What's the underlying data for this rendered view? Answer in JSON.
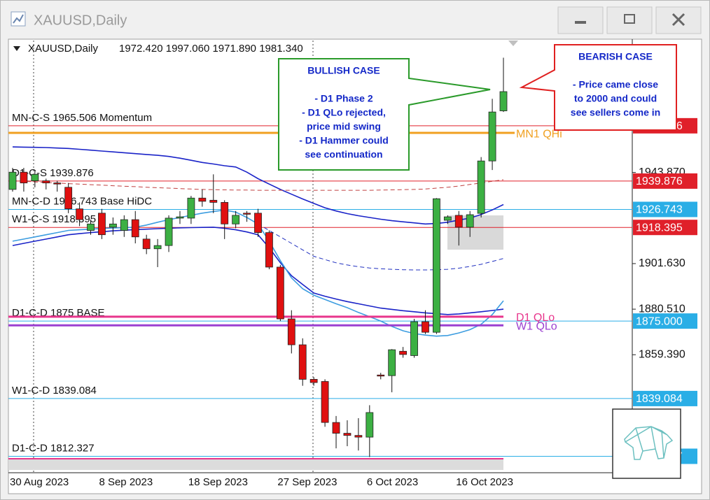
{
  "window": {
    "title": "XAUUSD,Daily"
  },
  "chart_data": {
    "type": "candlestick",
    "title": "XAUUSD,Daily",
    "subtitle": "1972.420 1997.060 1971.890 1981.340",
    "categories": [
      "30 Aug 2023",
      null,
      null,
      null,
      null,
      null,
      null,
      null,
      "8 Sep 2023",
      null,
      null,
      null,
      null,
      null,
      null,
      null,
      "18 Sep 2023",
      null,
      null,
      null,
      null,
      null,
      null,
      null,
      "27 Sep 2023",
      null,
      null,
      null,
      null,
      null,
      null,
      null,
      "6 Oct 2023",
      null,
      null,
      null,
      null,
      null,
      null,
      null,
      "16 Oct 2023",
      null,
      null,
      null,
      null
    ],
    "open": [
      1936,
      1944,
      1940,
      1940,
      1939,
      1937,
      1927,
      1917,
      1925,
      1918.5,
      1917,
      1922,
      1913,
      1908.5,
      1910,
      1922.7,
      1922.7,
      1932,
      1931,
      1930,
      1920,
      1925,
      1925,
      1916,
      1900,
      1876,
      1864,
      1848,
      1847,
      1828,
      1823,
      1822,
      1821.2,
      1850,
      1849.7,
      1861,
      1859,
      1874.7,
      1869.8,
      1921.7,
      1924,
      1918.5,
      1924.9,
      1949.2,
      1972.42
    ],
    "high": [
      1946,
      1946,
      1945,
      1941,
      1940,
      1939,
      1930,
      1922,
      1927,
      1923,
      1924,
      1926,
      1915,
      1913,
      1924,
      1926,
      1933,
      1936,
      1943,
      1931,
      1926,
      1926,
      1927,
      1917,
      1901,
      1880,
      1867,
      1849,
      1848,
      1831,
      1829,
      1830,
      1836,
      1851,
      1862,
      1863,
      1876,
      1880,
      1932,
      1924,
      1926,
      1926,
      1951,
      1978,
      1997.06
    ],
    "low": [
      1935,
      1935,
      1937,
      1936,
      1935,
      1925,
      1919,
      1915,
      1913,
      1915,
      1914,
      1911,
      1906,
      1900,
      1907,
      1920,
      1920,
      1928,
      1925,
      1913,
      1918,
      1921,
      1914,
      1899,
      1875,
      1860,
      1845,
      1845,
      1826,
      1816,
      1817,
      1815,
      1812,
      1848,
      1842,
      1858,
      1858,
      1869,
      1869,
      1920,
      1910,
      1914,
      1923,
      1945,
      1971.89
    ],
    "close": [
      1944,
      1939,
      1943,
      1939,
      1938.5,
      1927,
      1922,
      1920,
      1915,
      1920,
      1922,
      1914,
      1908.5,
      1910,
      1922.7,
      1923.3,
      1932,
      1930.5,
      1930,
      1920,
      1924,
      1924.5,
      1916,
      1900,
      1876,
      1864,
      1848,
      1846.5,
      1828,
      1823,
      1822,
      1821.2,
      1832.6,
      1849.5,
      1861.7,
      1859.5,
      1874.7,
      1869.8,
      1931.7,
      1923.3,
      1918.5,
      1924.3,
      1949.2,
      1971.9,
      1981.34
    ],
    "up_color": "#3cb043",
    "down_color": "#e01010",
    "indicators": [
      {
        "color": "#1a23c8",
        "values": [
          1955.7,
          1955.6,
          1955.5,
          1955.4,
          1955.2,
          1955,
          1954.6,
          1954.2,
          1953.8,
          1953.4,
          1953,
          1952.6,
          1952.2,
          1951.8,
          1951.3,
          1950.5,
          1949.5,
          1948.5,
          1947.8,
          1947,
          1946.4,
          1944,
          1941,
          1938.5,
          1936,
          1933.8,
          1931.6,
          1929.5,
          1927.5,
          1926,
          1924.8,
          1923.8,
          1923,
          1922.2,
          1921.5,
          1921,
          1920.5,
          1920,
          1920.2,
          1920.8,
          1921.8,
          1922.7,
          1924.4,
          1926.5,
          1929
        ]
      },
      {
        "color": "#1a23c8",
        "values": [
          1910,
          1911,
          1912,
          1913,
          1914,
          1915,
          1915.5,
          1916,
          1916.4,
          1916.8,
          1917.1,
          1917.4,
          1917.6,
          1917.8,
          1918,
          1918.2,
          1918.3,
          1918.4,
          1918.5,
          1918,
          1917.3,
          1916.3,
          1915,
          1909,
          1902,
          1896,
          1892,
          1888,
          1886.5,
          1885.2,
          1884,
          1883,
          1882,
          1881,
          1880.4,
          1879.8,
          1879.3,
          1878.8,
          1878.4,
          1878,
          1878.3,
          1878.8,
          1879.3,
          1879.9,
          1880.5
        ]
      },
      {
        "color": "#3d9de0",
        "values": [
          1912,
          1913,
          1914,
          1915,
          1916,
          1917,
          1917.3,
          1917.6,
          1917.9,
          1918.1,
          1918.3,
          1918.5,
          1919.5,
          1920.8,
          1922,
          1923,
          1924,
          1925,
          1925.8,
          1926.4,
          1925.5,
          1923,
          1920,
          1912,
          1903,
          1895,
          1890,
          1887,
          1885,
          1883,
          1881.2,
          1879,
          1877,
          1875,
          1872.5,
          1870.5,
          1869.2,
          1868.5,
          1868,
          1868.3,
          1869.5,
          1871,
          1873.5,
          1878,
          1884.4
        ]
      },
      {
        "color": "#2030c0",
        "dash": true,
        "values": [
          null,
          null,
          null,
          null,
          null,
          null,
          null,
          null,
          null,
          null,
          null,
          null,
          null,
          null,
          null,
          null,
          null,
          null,
          null,
          null,
          null,
          null,
          1920,
          1917,
          1914,
          1911,
          1908,
          1905,
          1903.5,
          1902,
          1901,
          1900.2,
          1899.6,
          1899.2,
          1899,
          1898.8,
          1898.7,
          1898.7,
          1898.8,
          1899,
          1899.5,
          1900.3,
          1901.3,
          1902.6,
          1904
        ]
      },
      {
        "color": "#c04040",
        "dash": true,
        "values": [
          1940,
          1939.8,
          1939.5,
          1939.2,
          1939,
          1938.7,
          1938.5,
          1938.2,
          1938,
          1937.7,
          1937.5,
          1937.3,
          1937,
          1936.8,
          1936.6,
          1936.4,
          1936.2,
          1936,
          1935.9,
          1935.8,
          1935.7,
          1935.7,
          1935.6,
          1935.6,
          1935.6,
          1935.6,
          1935.6,
          1935.6,
          1935.6,
          1935.6,
          1935.6,
          1935.6,
          1935.6,
          1935.7,
          1935.8,
          1935.9,
          1936,
          1936.2,
          1936.6,
          1937,
          1937.6,
          1938.3,
          1939,
          1939.8,
          1940.5
        ]
      }
    ],
    "levels": [
      {
        "text": "MN-C-S 1965.506 Momentum",
        "value": 1965.506,
        "color": "#e0202a"
      },
      {
        "text": "D1-C-S 1939.876",
        "value": 1939.876,
        "color": "#e0202a"
      },
      {
        "text": "MN-C-D 1926.743 Base HiDC",
        "value": 1926.743,
        "color": "#2aaee6"
      },
      {
        "text": "W1-C-S 1918.395",
        "value": 1918.395,
        "color": "#e0202a"
      },
      {
        "text": "D1-C-D 1875 BASE",
        "value": 1875,
        "tag": "1875.000",
        "color": "#2aaee6"
      },
      {
        "text": "W1-C-D 1839.084",
        "value": 1839.084,
        "color": "#2aaee6"
      },
      {
        "text": "D1-C-D 1812.327",
        "value": 1812.327,
        "color": "#2aaee6"
      }
    ],
    "bands": [
      {
        "text": "MN1 QHi",
        "value": 1962.2,
        "color": "#f0a020"
      },
      {
        "text": "D1 QLo",
        "value": 1877,
        "color": "#e8358c"
      },
      {
        "text": "W1 QLo",
        "value": 1873,
        "color": "#9b40d0"
      }
    ],
    "ylim": [
      1806,
      2005
    ],
    "yticks": [
      {
        "value": 1943.87,
        "label": "1943.870"
      },
      {
        "value": 1901.63,
        "label": "1901.630"
      },
      {
        "value": 1880.51,
        "label": "1880.510"
      },
      {
        "value": 1859.39,
        "label": "1859.390"
      }
    ]
  },
  "annotations": [
    {
      "title": "BULLISH CASE",
      "lines": [
        "- D1 Phase 2",
        "- D1 QLo rejected,",
        "price mid swing",
        "- D1 Hammer could",
        "see continuation"
      ]
    },
    {
      "title": "BEARISH CASE",
      "lines": [
        "- Price came close",
        "to 2000 and could",
        "see sellers come in"
      ]
    }
  ]
}
